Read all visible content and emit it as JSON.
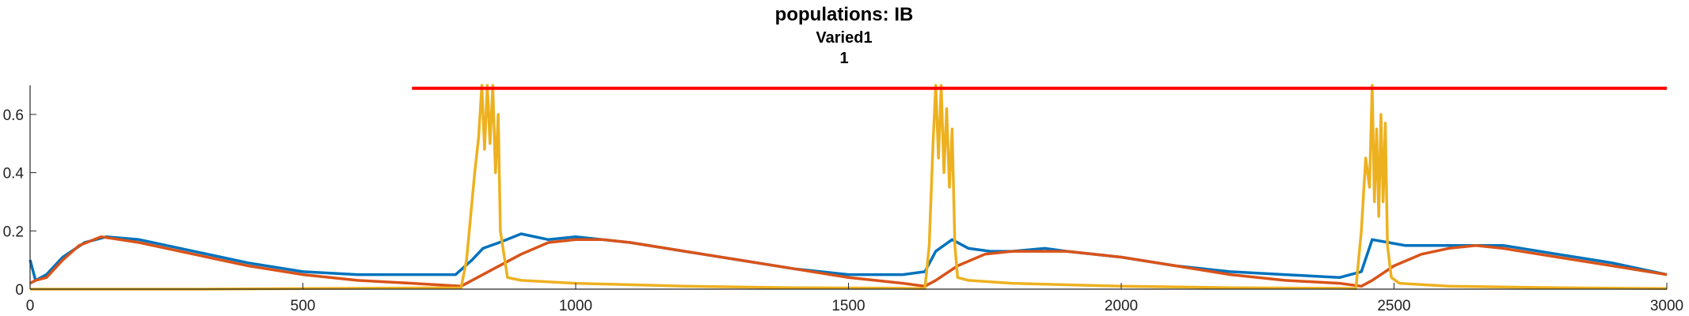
{
  "chart_data": {
    "type": "line",
    "title": "populations: IB",
    "subtitle": "Varied1",
    "subtitle2": "1",
    "xlabel": "",
    "ylabel": "",
    "xlim": [
      0,
      3000
    ],
    "ylim": [
      0,
      0.7
    ],
    "x_ticks": [
      0,
      500,
      1000,
      1500,
      2000,
      2500,
      3000
    ],
    "y_ticks": [
      0,
      0.2,
      0.4,
      0.6
    ],
    "y_tick_labels": [
      "0",
      "0.2",
      "0.4",
      "0.6"
    ],
    "grid": false,
    "legend": "none",
    "colors": {
      "blue": "#0072BD",
      "orange": "#D95319",
      "yellow": "#EDB120",
      "red": "#FF0000"
    },
    "series": [
      {
        "color": "#0072BD",
        "x": [
          0,
          10,
          30,
          60,
          100,
          140,
          200,
          300,
          400,
          500,
          600,
          700,
          780,
          810,
          830,
          860,
          900,
          950,
          1000,
          1100,
          1200,
          1300,
          1400,
          1500,
          1600,
          1640,
          1660,
          1690,
          1720,
          1760,
          1800,
          1860,
          1900,
          2000,
          2100,
          2200,
          2300,
          2400,
          2440,
          2460,
          2490,
          2520,
          2560,
          2600,
          2650,
          2700,
          2800,
          2900,
          3000
        ],
        "y": [
          0.1,
          0.03,
          0.05,
          0.11,
          0.16,
          0.18,
          0.17,
          0.13,
          0.09,
          0.06,
          0.05,
          0.05,
          0.05,
          0.1,
          0.14,
          0.16,
          0.19,
          0.17,
          0.18,
          0.16,
          0.13,
          0.1,
          0.07,
          0.05,
          0.05,
          0.06,
          0.13,
          0.17,
          0.14,
          0.13,
          0.13,
          0.14,
          0.13,
          0.11,
          0.08,
          0.06,
          0.05,
          0.04,
          0.06,
          0.17,
          0.16,
          0.15,
          0.15,
          0.15,
          0.15,
          0.15,
          0.12,
          0.09,
          0.05
        ]
      },
      {
        "color": "#D95319",
        "x": [
          0,
          10,
          30,
          60,
          90,
          130,
          200,
          300,
          400,
          500,
          600,
          700,
          790,
          810,
          850,
          900,
          950,
          1000,
          1050,
          1100,
          1200,
          1300,
          1400,
          1500,
          1600,
          1640,
          1660,
          1700,
          1750,
          1800,
          1860,
          1900,
          2000,
          2100,
          2200,
          2300,
          2400,
          2440,
          2460,
          2500,
          2550,
          2600,
          2650,
          2700,
          2800,
          2900,
          3000
        ],
        "y": [
          0.02,
          0.03,
          0.04,
          0.1,
          0.15,
          0.18,
          0.16,
          0.12,
          0.08,
          0.05,
          0.03,
          0.02,
          0.01,
          0.03,
          0.07,
          0.12,
          0.16,
          0.17,
          0.17,
          0.16,
          0.13,
          0.1,
          0.07,
          0.04,
          0.02,
          0.01,
          0.03,
          0.08,
          0.12,
          0.13,
          0.13,
          0.13,
          0.11,
          0.08,
          0.05,
          0.03,
          0.02,
          0.01,
          0.03,
          0.08,
          0.12,
          0.14,
          0.15,
          0.14,
          0.11,
          0.08,
          0.05
        ]
      },
      {
        "color": "#EDB120",
        "x": [
          0,
          300,
          600,
          790,
          800,
          815,
          822,
          828,
          833,
          838,
          843,
          848,
          853,
          858,
          862,
          875,
          900,
          1000,
          1200,
          1400,
          1600,
          1640,
          1648,
          1655,
          1660,
          1665,
          1670,
          1675,
          1680,
          1685,
          1690,
          1695,
          1700,
          1720,
          1800,
          2000,
          2200,
          2400,
          2430,
          2440,
          2448,
          2455,
          2460,
          2464,
          2468,
          2472,
          2476,
          2480,
          2484,
          2488,
          2495,
          2510,
          2600,
          2800,
          3000
        ],
        "y": [
          0,
          0,
          0.003,
          0.005,
          0.1,
          0.4,
          0.52,
          0.7,
          0.48,
          0.7,
          0.5,
          0.7,
          0.4,
          0.6,
          0.2,
          0.04,
          0.03,
          0.02,
          0.01,
          0.005,
          0.003,
          0.002,
          0.15,
          0.5,
          0.7,
          0.45,
          0.7,
          0.4,
          0.62,
          0.35,
          0.55,
          0.15,
          0.04,
          0.03,
          0.02,
          0.01,
          0.005,
          0.003,
          0.002,
          0.2,
          0.45,
          0.35,
          0.7,
          0.3,
          0.55,
          0.25,
          0.6,
          0.3,
          0.57,
          0.15,
          0.04,
          0.02,
          0.01,
          0.005,
          0.002
        ]
      },
      {
        "color": "#FF0000",
        "x": [
          700,
          3000
        ],
        "y": [
          0.69,
          0.69
        ]
      }
    ]
  }
}
